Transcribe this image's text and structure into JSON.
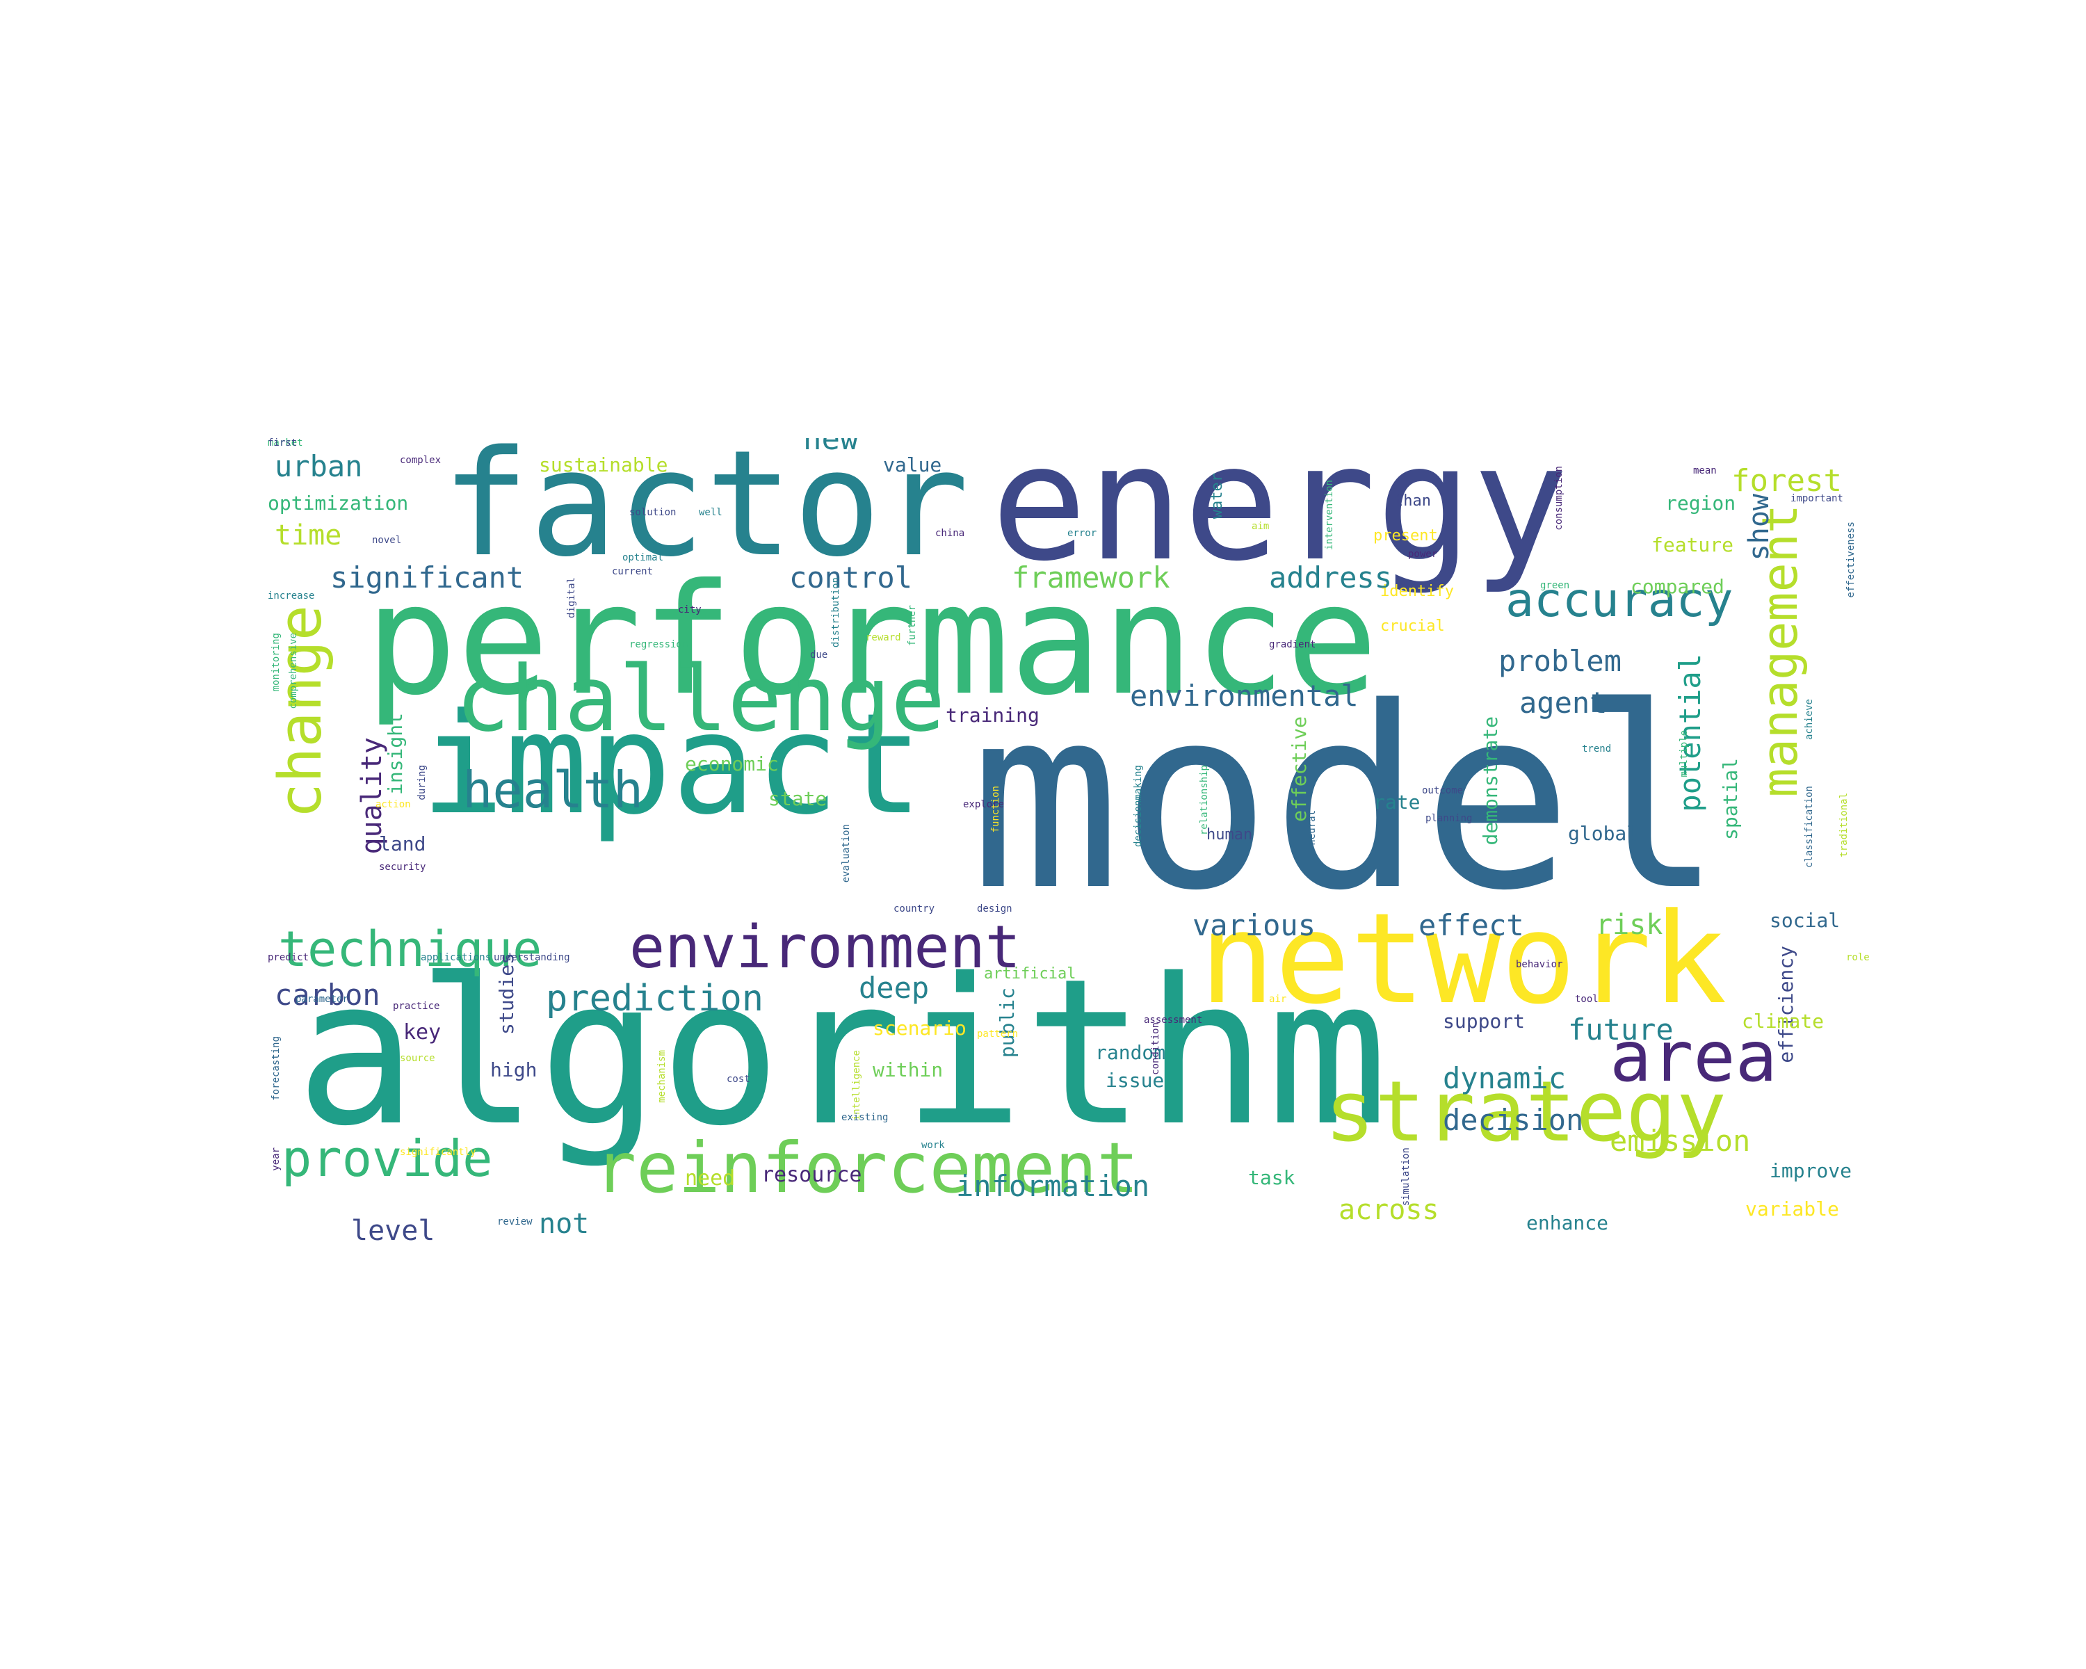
{
  "palette": {
    "dark_purple": "#482878",
    "indigo": "#3e4989",
    "blue": "#31688e",
    "teal": "#26828e",
    "green": "#1f9e89",
    "light_green": "#35b779",
    "lime": "#6ece58",
    "yellow_green": "#b5de2b",
    "yellow": "#fde725"
  },
  "words": [
    {
      "text": "model",
      "color": "#31688e",
      "rot": 0
    },
    {
      "text": "algorithm",
      "color": "#1f9e89",
      "rot": 0
    },
    {
      "text": "energy",
      "color": "#3e4989",
      "rot": 0
    },
    {
      "text": "performance",
      "color": "#35b779",
      "rot": 0
    },
    {
      "text": "factor",
      "color": "#26828e",
      "rot": 0
    },
    {
      "text": "impact",
      "color": "#1f9e89",
      "rot": 0
    },
    {
      "text": "network",
      "color": "#fde725",
      "rot": 0
    },
    {
      "text": "challenge",
      "color": "#35b779",
      "rot": 0
    },
    {
      "text": "strategy",
      "color": "#b5de2b",
      "rot": 0
    },
    {
      "text": "reinforcement",
      "color": "#6ece58",
      "rot": 0
    },
    {
      "text": "area",
      "color": "#482878",
      "rot": 0
    },
    {
      "text": "environment",
      "color": "#482878",
      "rot": 0
    },
    {
      "text": "change",
      "color": "#b5de2b",
      "rot": 90
    },
    {
      "text": "health",
      "color": "#26828e",
      "rot": 0
    },
    {
      "text": "technique",
      "color": "#35b779",
      "rot": 0
    },
    {
      "text": "accuracy",
      "color": "#26828e",
      "rot": 0
    },
    {
      "text": "provide",
      "color": "#35b779",
      "rot": 0
    },
    {
      "text": "management",
      "color": "#b5de2b",
      "rot": 90
    },
    {
      "text": "prediction",
      "color": "#26828e",
      "rot": 0
    },
    {
      "text": "environmental",
      "color": "#31688e",
      "rot": 0
    },
    {
      "text": "significant",
      "color": "#31688e",
      "rot": 0
    },
    {
      "text": "control",
      "color": "#31688e",
      "rot": 0
    },
    {
      "text": "framework",
      "color": "#6ece58",
      "rot": 0
    },
    {
      "text": "address",
      "color": "#26828e",
      "rot": 0
    },
    {
      "text": "various",
      "color": "#31688e",
      "rot": 0
    },
    {
      "text": "effect",
      "color": "#31688e",
      "rot": 0
    },
    {
      "text": "problem",
      "color": "#31688e",
      "rot": 0
    },
    {
      "text": "agent",
      "color": "#31688e",
      "rot": 0
    },
    {
      "text": "potential",
      "color": "#1f9e89",
      "rot": 90
    },
    {
      "text": "decision",
      "color": "#31688e",
      "rot": 0
    },
    {
      "text": "dynamic",
      "color": "#26828e",
      "rot": 0
    },
    {
      "text": "future",
      "color": "#26828e",
      "rot": 0
    },
    {
      "text": "emission",
      "color": "#b5de2b",
      "rot": 0
    },
    {
      "text": "information",
      "color": "#26828e",
      "rot": 0
    },
    {
      "text": "forest",
      "color": "#b5de2b",
      "rot": 0
    },
    {
      "text": "urban",
      "color": "#26828e",
      "rot": 0
    },
    {
      "text": "new",
      "color": "#26828e",
      "rot": 0
    },
    {
      "text": "deep",
      "color": "#26828e",
      "rot": 0
    },
    {
      "text": "carbon",
      "color": "#3e4989",
      "rot": 0
    },
    {
      "text": "quality",
      "color": "#482878",
      "rot": 90
    },
    {
      "text": "time",
      "color": "#b5de2b",
      "rot": 0
    },
    {
      "text": "across",
      "color": "#b5de2b",
      "rot": 0
    },
    {
      "text": "level",
      "color": "#3e4989",
      "rot": 0
    },
    {
      "text": "not",
      "color": "#26828e",
      "rot": 0
    },
    {
      "text": "risk",
      "color": "#6ece58",
      "rot": 0
    },
    {
      "text": "show",
      "color": "#31688e",
      "rot": 90
    },
    {
      "text": "sustainable",
      "color": "#b5de2b",
      "rot": 0
    },
    {
      "text": "optimization",
      "color": "#35b779",
      "rot": 0
    },
    {
      "text": "value",
      "color": "#31688e",
      "rot": 0
    },
    {
      "text": "region",
      "color": "#35b779",
      "rot": 0
    },
    {
      "text": "feature",
      "color": "#b5de2b",
      "rot": 0
    },
    {
      "text": "compared",
      "color": "#6ece58",
      "rot": 0
    },
    {
      "text": "training",
      "color": "#482878",
      "rot": 0
    },
    {
      "text": "economic",
      "color": "#6ece58",
      "rot": 0
    },
    {
      "text": "state",
      "color": "#6ece58",
      "rot": 0
    },
    {
      "text": "insight",
      "color": "#35b779",
      "rot": 90
    },
    {
      "text": "land",
      "color": "#3e4989",
      "rot": 0
    },
    {
      "text": "global",
      "color": "#31688e",
      "rot": 0
    },
    {
      "text": "spatial",
      "color": "#35b779",
      "rot": 90
    },
    {
      "text": "social",
      "color": "#31688e",
      "rot": 0
    },
    {
      "text": "efficiency",
      "color": "#3e4989",
      "rot": 90
    },
    {
      "text": "support",
      "color": "#3e4989",
      "rot": 0
    },
    {
      "text": "climate",
      "color": "#b5de2b",
      "rot": 0
    },
    {
      "text": "key",
      "color": "#482878",
      "rot": 0
    },
    {
      "text": "studies",
      "color": "#3e4989",
      "rot": 90
    },
    {
      "text": "high",
      "color": "#3e4989",
      "rot": 0
    },
    {
      "text": "public",
      "color": "#26828e",
      "rot": 90
    },
    {
      "text": "scenario",
      "color": "#fde725",
      "rot": 0
    },
    {
      "text": "within",
      "color": "#6ece58",
      "rot": 0
    },
    {
      "text": "random",
      "color": "#26828e",
      "rot": 0
    },
    {
      "text": "issue",
      "color": "#26828e",
      "rot": 0
    },
    {
      "text": "rate",
      "color": "#26828e",
      "rot": 0
    },
    {
      "text": "demonstrate",
      "color": "#35b779",
      "rot": 90
    },
    {
      "text": "effective",
      "color": "#6ece58",
      "rot": 90
    },
    {
      "text": "resource",
      "color": "#482878",
      "rot": 0
    },
    {
      "text": "need",
      "color": "#b5de2b",
      "rot": 0
    },
    {
      "text": "task",
      "color": "#35b779",
      "rot": 0
    },
    {
      "text": "enhance",
      "color": "#26828e",
      "rot": 0
    },
    {
      "text": "improve",
      "color": "#26828e",
      "rot": 0
    },
    {
      "text": "variable",
      "color": "#fde725",
      "rot": 0
    },
    {
      "text": "artificial",
      "color": "#6ece58",
      "rot": 0
    },
    {
      "text": "human",
      "color": "#3e4989",
      "rot": 0
    },
    {
      "text": "water",
      "color": "#26828e",
      "rot": 90
    },
    {
      "text": "than",
      "color": "#3e4989",
      "rot": 0
    },
    {
      "text": "present",
      "color": "#fde725",
      "rot": 0
    },
    {
      "text": "identify",
      "color": "#fde725",
      "rot": 0
    },
    {
      "text": "crucial",
      "color": "#fde725",
      "rot": 0
    },
    {
      "text": "complex",
      "color": "#482878",
      "rot": 0
    },
    {
      "text": "solution",
      "color": "#3e4989",
      "rot": 0
    },
    {
      "text": "well",
      "color": "#26828e",
      "rot": 0
    },
    {
      "text": "novel",
      "color": "#3e4989",
      "rot": 0
    },
    {
      "text": "error",
      "color": "#26828e",
      "rot": 0
    },
    {
      "text": "china",
      "color": "#482878",
      "rot": 0
    },
    {
      "text": "optimal",
      "color": "#26828e",
      "rot": 0
    },
    {
      "text": "current",
      "color": "#3e4989",
      "rot": 0
    },
    {
      "text": "increase",
      "color": "#26828e",
      "rot": 0
    },
    {
      "text": "digital",
      "color": "#3e4989",
      "rot": 90
    },
    {
      "text": "city",
      "color": "#482878",
      "rot": 0
    },
    {
      "text": "regression",
      "color": "#35b779",
      "rot": 0
    },
    {
      "text": "reward",
      "color": "#b5de2b",
      "rot": 0
    },
    {
      "text": "due",
      "color": "#3e4989",
      "rot": 0
    },
    {
      "text": "distribution",
      "color": "#26828e",
      "rot": 90
    },
    {
      "text": "gradient",
      "color": "#482878",
      "rot": 0
    },
    {
      "text": "further",
      "color": "#35b779",
      "rot": 90
    },
    {
      "text": "mean",
      "color": "#482878",
      "rot": 0
    },
    {
      "text": "important",
      "color": "#3e4989",
      "rot": 0
    },
    {
      "text": "consumption",
      "color": "#482878",
      "rot": 90
    },
    {
      "text": "effectiveness",
      "color": "#31688e",
      "rot": 90
    },
    {
      "text": "green",
      "color": "#35b779",
      "rot": 0
    },
    {
      "text": "multiple",
      "color": "#35b779",
      "rot": 90
    },
    {
      "text": "achieve",
      "color": "#26828e",
      "rot": 90
    },
    {
      "text": "classification",
      "color": "#31688e",
      "rot": 90
    },
    {
      "text": "traditional",
      "color": "#b5de2b",
      "rot": 90
    },
    {
      "text": "power",
      "color": "#482878",
      "rot": 0
    },
    {
      "text": "aim",
      "color": "#b5de2b",
      "rot": 0
    },
    {
      "text": "intervention",
      "color": "#35b779",
      "rot": 90
    },
    {
      "text": "monitoring",
      "color": "#35b779",
      "rot": 90
    },
    {
      "text": "comprehensive",
      "color": "#35b779",
      "rot": 90
    },
    {
      "text": "action",
      "color": "#fde725",
      "rot": 0
    },
    {
      "text": "during",
      "color": "#3e4989",
      "rot": 90
    },
    {
      "text": "security",
      "color": "#482878",
      "rot": 0
    },
    {
      "text": "predict",
      "color": "#482878",
      "rot": 0
    },
    {
      "text": "applications",
      "color": "#26828e",
      "rot": 0
    },
    {
      "text": "understanding",
      "color": "#3e4989",
      "rot": 0
    },
    {
      "text": "parameter",
      "color": "#31688e",
      "rot": 0
    },
    {
      "text": "practice",
      "color": "#482878",
      "rot": 0
    },
    {
      "text": "forecasting",
      "color": "#31688e",
      "rot": 90
    },
    {
      "text": "source",
      "color": "#b5de2b",
      "rot": 0
    },
    {
      "text": "year",
      "color": "#482878",
      "rot": 90
    },
    {
      "text": "significantly",
      "color": "#fde725",
      "rot": 0
    },
    {
      "text": "review",
      "color": "#31688e",
      "rot": 0
    },
    {
      "text": "mechanism",
      "color": "#b5de2b",
      "rot": 90
    },
    {
      "text": "cost",
      "color": "#3e4989",
      "rot": 0
    },
    {
      "text": "intelligence",
      "color": "#b5de2b",
      "rot": 90
    },
    {
      "text": "existing",
      "color": "#31688e",
      "rot": 0
    },
    {
      "text": "work",
      "color": "#26828e",
      "rot": 0
    },
    {
      "text": "simulation",
      "color": "#3e4989",
      "rot": 90
    },
    {
      "text": "evaluation",
      "color": "#31688e",
      "rot": 90
    },
    {
      "text": "country",
      "color": "#3e4989",
      "rot": 0
    },
    {
      "text": "design",
      "color": "#3e4989",
      "rot": 0
    },
    {
      "text": "pattern",
      "color": "#fde725",
      "rot": 0
    },
    {
      "text": "assessment",
      "color": "#482878",
      "rot": 0
    },
    {
      "text": "condition",
      "color": "#482878",
      "rot": 90
    },
    {
      "text": "decisionmaking",
      "color": "#26828e",
      "rot": 90
    },
    {
      "text": "relationship",
      "color": "#35b779",
      "rot": 90
    },
    {
      "text": "neural",
      "color": "#31688e",
      "rot": 90
    },
    {
      "text": "outcome",
      "color": "#3e4989",
      "rot": 0
    },
    {
      "text": "planning",
      "color": "#3e4989",
      "rot": 0
    },
    {
      "text": "trend",
      "color": "#26828e",
      "rot": 0
    },
    {
      "text": "air",
      "color": "#fde725",
      "rot": 0
    },
    {
      "text": "behavior",
      "color": "#482878",
      "rot": 0
    },
    {
      "text": "tool",
      "color": "#482878",
      "rot": 0
    },
    {
      "text": "role",
      "color": "#b5de2b",
      "rot": 0
    },
    {
      "text": "explore",
      "color": "#482878",
      "rot": 0
    },
    {
      "text": "function",
      "color": "#fde725",
      "rot": 90
    },
    {
      "text": "market",
      "color": "#35b779",
      "rot": 0
    },
    {
      "text": "first",
      "color": "#3e4989",
      "rot": 0
    }
  ]
}
